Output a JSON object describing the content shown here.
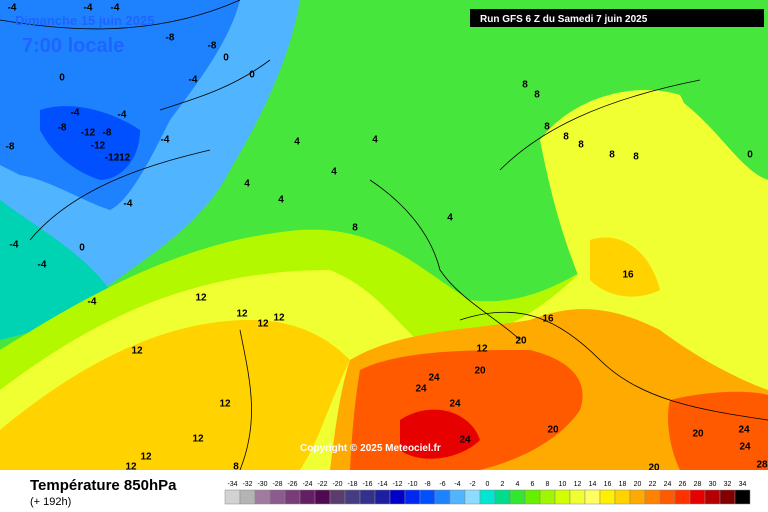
{
  "header": {
    "date": "Dimanche 15 juin 2025",
    "time": "7:00 locale",
    "run": "Run GFS 6 Z du Samedi 7 juin 2025"
  },
  "map": {
    "copyright": "Copyright © 2025 Meteociel.fr",
    "contour_labels": [
      -4,
      -4,
      -4,
      -8,
      -8,
      0,
      0,
      -4,
      0,
      -4,
      -8,
      -4,
      -12,
      -8,
      -12,
      -4,
      -8,
      -12,
      -12,
      -4,
      4,
      4,
      4,
      8,
      8,
      8,
      8,
      8,
      8,
      8,
      0,
      4,
      4,
      4,
      8,
      -4,
      0,
      -4,
      -4,
      12,
      12,
      12,
      12,
      16,
      16,
      12,
      20,
      20,
      24,
      24,
      24,
      12,
      12,
      12,
      12,
      12,
      8,
      20,
      24,
      20,
      24,
      24,
      20,
      28
    ]
  },
  "footer": {
    "title": "Température 850hPa",
    "lead": "(+ 192h)"
  },
  "legend": {
    "values": [
      -34,
      -32,
      -30,
      -28,
      -26,
      -24,
      -22,
      -20,
      -18,
      -16,
      -14,
      -12,
      -10,
      -8,
      -6,
      -4,
      -2,
      0,
      2,
      4,
      6,
      8,
      10,
      12,
      14,
      16,
      18,
      20,
      22,
      24,
      26,
      28,
      30,
      32,
      34
    ],
    "colors": [
      "#d2d2d2",
      "#b4b4b4",
      "#a07aa0",
      "#8c5a8c",
      "#783c78",
      "#641e64",
      "#500a50",
      "#5a3c6e",
      "#463c82",
      "#32328c",
      "#1e1ea0",
      "#0000c8",
      "#0028f0",
      "#0050ff",
      "#1e82ff",
      "#50b4ff",
      "#8cdcff",
      "#00e6d2",
      "#00dc8c",
      "#32e632",
      "#64f000",
      "#a0f500",
      "#d2ff00",
      "#f0ff32",
      "#ffff64",
      "#fff000",
      "#ffd200",
      "#ffaa00",
      "#ff8200",
      "#ff5a00",
      "#ff3200",
      "#e60000",
      "#b40000",
      "#820000",
      "#000000"
    ]
  }
}
